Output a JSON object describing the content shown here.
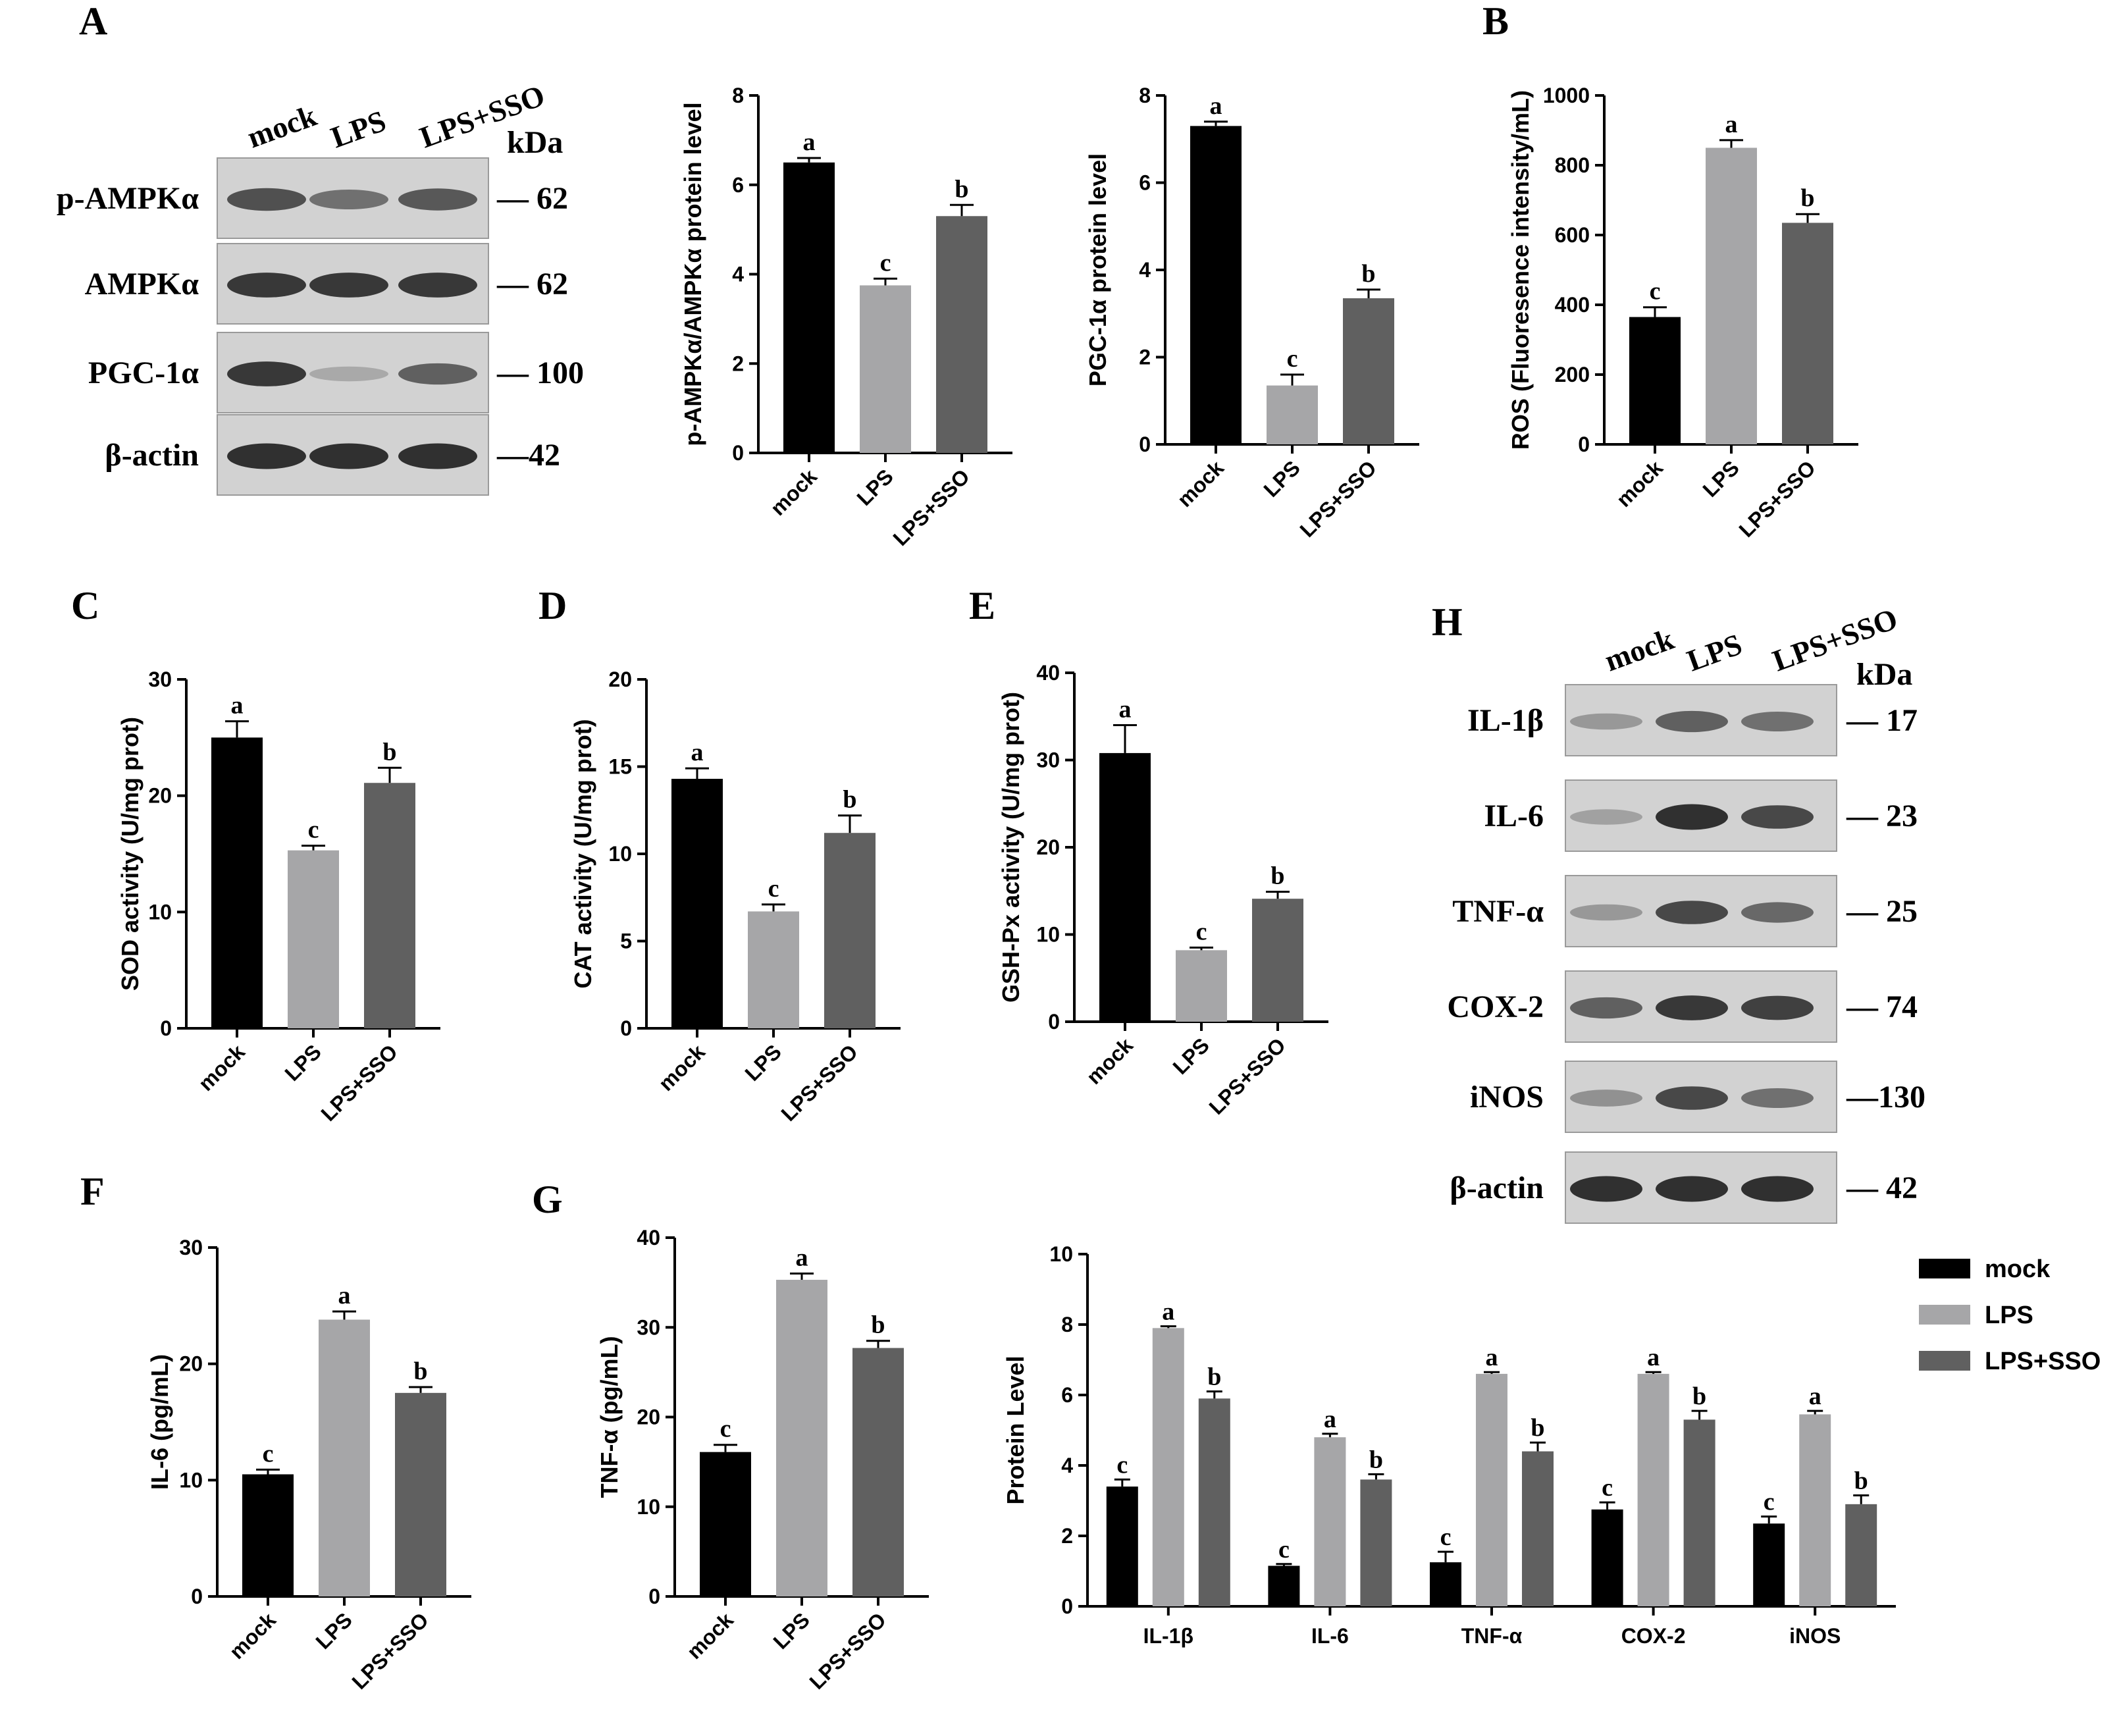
{
  "figure": {
    "panel_letters": [
      "A",
      "B",
      "C",
      "D",
      "E",
      "F",
      "G",
      "H"
    ]
  },
  "colors": {
    "mock": "#000000",
    "LPS": "#a6a6a8",
    "LPS+SSO": "#606060",
    "axis": "#000000"
  },
  "blot_A": {
    "lanes": [
      "mock",
      "LPS",
      "LPS+SSO"
    ],
    "kda_header": "kDa",
    "bands": [
      {
        "name": "p-AMPKα",
        "kda": "— 62"
      },
      {
        "name": "AMPKα",
        "kda": "— 62"
      },
      {
        "name": "PGC-1α",
        "kda": "— 100"
      },
      {
        "name": "β-actin",
        "kda": "—42"
      }
    ]
  },
  "blot_H": {
    "lanes": [
      "mock",
      "LPS",
      "LPS+SSO"
    ],
    "kda_header": "kDa",
    "bands": [
      {
        "name": "IL-1β",
        "kda": "— 17"
      },
      {
        "name": "IL-6",
        "kda": "— 23"
      },
      {
        "name": "TNF-α",
        "kda": "— 25"
      },
      {
        "name": "COX-2",
        "kda": "— 74"
      },
      {
        "name": "iNOS",
        "kda": "—130"
      },
      {
        "name": "β-actin",
        "kda": "— 42"
      }
    ]
  },
  "chart_data": [
    {
      "id": "A1",
      "type": "bar",
      "categories": [
        "mock",
        "LPS",
        "LPS+SSO"
      ],
      "values": [
        6.5,
        3.75,
        5.3
      ],
      "errors": [
        0.1,
        0.15,
        0.25
      ],
      "letters": [
        "a",
        "c",
        "b"
      ],
      "ylabel": "p-AMPKα/AMPKα protein level",
      "ylim": [
        0,
        8
      ],
      "yticks": [
        "0",
        "2",
        "4",
        "6",
        "8"
      ]
    },
    {
      "id": "A2",
      "type": "bar",
      "categories": [
        "mock",
        "LPS",
        "LPS+SSO"
      ],
      "values": [
        7.3,
        1.35,
        3.35
      ],
      "errors": [
        0.1,
        0.25,
        0.2
      ],
      "letters": [
        "a",
        "c",
        "b"
      ],
      "ylabel": "PGC-1α protein level",
      "ylim": [
        0,
        8
      ],
      "yticks": [
        "0",
        "2",
        "4",
        "6",
        "8"
      ]
    },
    {
      "id": "B",
      "type": "bar",
      "categories": [
        "mock",
        "LPS",
        "LPS+SSO"
      ],
      "values": [
        365,
        850,
        635
      ],
      "errors": [
        28,
        22,
        25
      ],
      "letters": [
        "c",
        "a",
        "b"
      ],
      "ylabel": "ROS (Fluoresence intensity/mL)",
      "ylim": [
        0,
        1000
      ],
      "yticks": [
        "0",
        "200",
        "400",
        "600",
        "800",
        "1000"
      ]
    },
    {
      "id": "C",
      "type": "bar",
      "categories": [
        "mock",
        "LPS",
        "LPS+SSO"
      ],
      "values": [
        25.0,
        15.3,
        21.1
      ],
      "errors": [
        1.4,
        0.4,
        1.3
      ],
      "letters": [
        "a",
        "c",
        "b"
      ],
      "ylabel": "SOD activity (U/mg prot)",
      "ylim": [
        0,
        30
      ],
      "yticks": [
        "0",
        "10",
        "20",
        "30"
      ]
    },
    {
      "id": "D",
      "type": "bar",
      "categories": [
        "mock",
        "LPS",
        "LPS+SSO"
      ],
      "values": [
        14.3,
        6.7,
        11.2
      ],
      "errors": [
        0.6,
        0.4,
        1.0
      ],
      "letters": [
        "a",
        "c",
        "b"
      ],
      "ylabel": "CAT activity (U/mg prot)",
      "ylim": [
        0,
        20
      ],
      "yticks": [
        "0",
        "5",
        "10",
        "15",
        "20"
      ]
    },
    {
      "id": "E",
      "type": "bar",
      "categories": [
        "mock",
        "LPS",
        "LPS+SSO"
      ],
      "values": [
        30.8,
        8.2,
        14.1
      ],
      "errors": [
        3.2,
        0.3,
        0.8
      ],
      "letters": [
        "a",
        "c",
        "b"
      ],
      "ylabel": "GSH-Px activity (U/mg prot)",
      "ylim": [
        0,
        40
      ],
      "yticks": [
        "0",
        "10",
        "20",
        "30",
        "40"
      ]
    },
    {
      "id": "F",
      "type": "bar",
      "categories": [
        "mock",
        "LPS",
        "LPS+SSO"
      ],
      "values": [
        10.5,
        23.8,
        17.5
      ],
      "errors": [
        0.4,
        0.7,
        0.5
      ],
      "letters": [
        "c",
        "a",
        "b"
      ],
      "ylabel": "IL-6 (pg/mL)",
      "ylim": [
        0,
        30
      ],
      "yticks": [
        "0",
        "10",
        "20",
        "30"
      ]
    },
    {
      "id": "G",
      "type": "bar",
      "categories": [
        "mock",
        "LPS",
        "LPS+SSO"
      ],
      "values": [
        16.1,
        35.3,
        27.7
      ],
      "errors": [
        0.8,
        0.7,
        0.8
      ],
      "letters": [
        "c",
        "a",
        "b"
      ],
      "ylabel": "TNF-α (pg/mL)",
      "ylim": [
        0,
        40
      ],
      "yticks": [
        "0",
        "10",
        "20",
        "30",
        "40"
      ]
    },
    {
      "id": "H",
      "type": "bar",
      "categories": [
        "IL-1β",
        "IL-6",
        "TNF-α",
        "COX-2",
        "iNOS"
      ],
      "series": [
        {
          "name": "mock",
          "values": [
            3.4,
            1.15,
            1.25,
            2.75,
            2.35
          ],
          "errors": [
            0.2,
            0.05,
            0.3,
            0.2,
            0.2
          ],
          "letters": [
            "c",
            "c",
            "c",
            "c",
            "c"
          ]
        },
        {
          "name": "LPS",
          "values": [
            7.9,
            4.8,
            6.6,
            6.6,
            5.45
          ],
          "errors": [
            0.05,
            0.1,
            0.05,
            0.05,
            0.1
          ],
          "letters": [
            "a",
            "a",
            "a",
            "a",
            "a"
          ]
        },
        {
          "name": "LPS+SSO",
          "values": [
            5.9,
            3.6,
            4.4,
            5.3,
            2.9
          ],
          "errors": [
            0.2,
            0.15,
            0.25,
            0.25,
            0.25
          ],
          "letters": [
            "b",
            "b",
            "b",
            "b",
            "b"
          ]
        }
      ],
      "ylabel": "Protein Level",
      "ylim": [
        0,
        10
      ],
      "yticks": [
        "0",
        "2",
        "4",
        "6",
        "8",
        "10"
      ],
      "legend": [
        "mock",
        "LPS",
        "LPS+SSO"
      ],
      "legend_position": "top-right"
    }
  ]
}
